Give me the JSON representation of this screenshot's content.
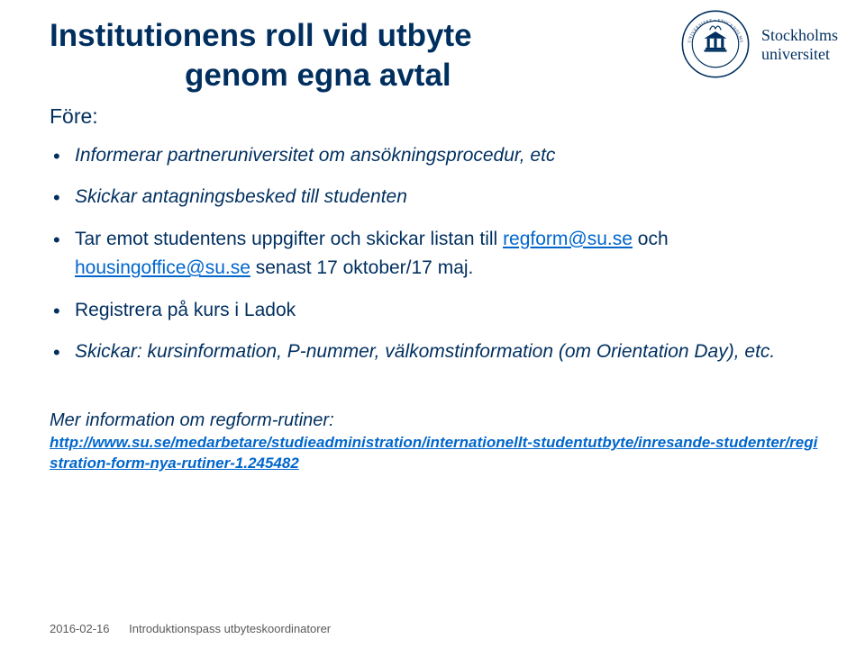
{
  "title": {
    "line1": "Institutionens roll vid utbyte",
    "line2": "genom egna avtal"
  },
  "subheading": "Före:",
  "bullets": [
    {
      "style": "italic",
      "segments": [
        {
          "t": "text",
          "v": "Informerar partneruniversitet om ansökningsprocedur, etc"
        }
      ]
    },
    {
      "style": "italic",
      "segments": [
        {
          "t": "text",
          "v": "Skickar antagningsbesked till studenten"
        }
      ]
    },
    {
      "style": "upright",
      "segments": [
        {
          "t": "text",
          "v": "Tar emot studentens uppgifter och skickar listan till "
        },
        {
          "t": "link",
          "v": "regform@su.se"
        },
        {
          "t": "text",
          "v": " och "
        },
        {
          "t": "link",
          "v": "housingoffice@su.se"
        },
        {
          "t": "text",
          "v": " senast 17 oktober/17 maj."
        }
      ]
    },
    {
      "style": "upright",
      "segments": [
        {
          "t": "text",
          "v": "Registrera på kurs i Ladok"
        }
      ]
    },
    {
      "style": "italic",
      "segments": [
        {
          "t": "text",
          "v": "Skickar: kursinformation, P-nummer, välkomstinformation (om Orientation Day), etc."
        }
      ]
    }
  ],
  "info": {
    "label": "Mer information om regform-rutiner:",
    "link": "http://www.su.se/medarbetare/studieadministration/internationellt-studentutbyte/inresande-studenter/registration-form-nya-rutiner-1.245482"
  },
  "footer": {
    "date": "2016-02-16",
    "text": "Introduktionspass utbyteskoordinatorer"
  },
  "logo": {
    "line1": "Stockholms",
    "line2": "universitet"
  },
  "colors": {
    "brand": "#002f5f",
    "link": "#0066cc",
    "footer": "#595959",
    "background": "#ffffff"
  }
}
